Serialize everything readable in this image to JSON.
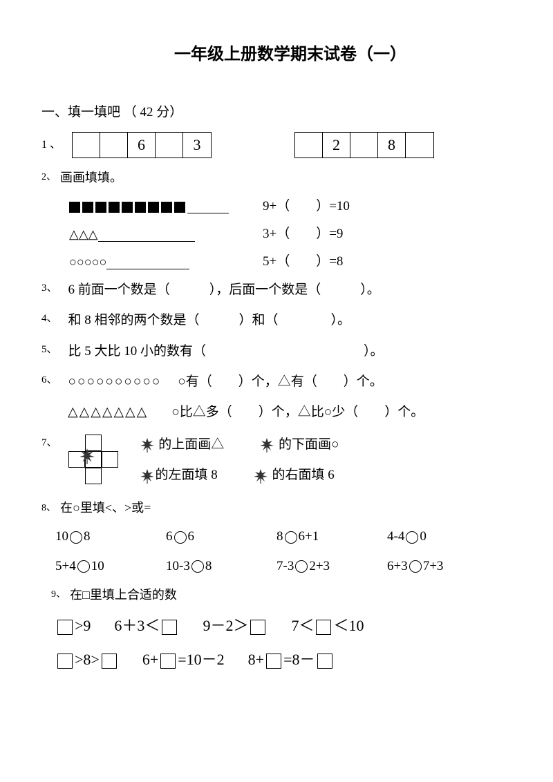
{
  "title": "一年级上册数学期末试卷（一）",
  "section1": {
    "heading": "一、填一填吧 （ 42 分）"
  },
  "q1": {
    "num": "1 、",
    "row1": [
      "",
      "",
      "6",
      "",
      "3"
    ],
    "row2": [
      "",
      "2",
      "",
      "8",
      ""
    ]
  },
  "q2": {
    "num": "2、",
    "label": "画画填填。",
    "lines": [
      {
        "shapes_count": 9,
        "shape": "square",
        "blank_w": 60,
        "eqn": "9+（　　）=10"
      },
      {
        "shapes_count": 3,
        "shape": "triangle",
        "blank_w": 140,
        "eqn": "3+（　　）=9"
      },
      {
        "shapes_count": 5,
        "shape": "circle",
        "blank_w": 120,
        "eqn": "5+（　　）=8"
      }
    ]
  },
  "q3": {
    "num": "3、",
    "text": "6 前面一个数是（　　　），后面一个数是（　　　）。"
  },
  "q4": {
    "num": "4、",
    "text": "和 8 相邻的两个数是（　　　）和（　　　　）。"
  },
  "q5": {
    "num": "5、",
    "text": "比 5 大比 10 小的数有（　　　　　　　　　　　　）。"
  },
  "q6": {
    "num": "6、",
    "line1_shapes": "○○○○○○○○○○",
    "line1_text": "○有（　　）个，△有（　　）个。",
    "line2_shapes": "△△△△△△△",
    "line2_text": "○比△多（　　）个，△比○少（　　）个。"
  },
  "q7": {
    "num": "7、",
    "r1a": "的上面画△",
    "r1b": "的下面画○",
    "r2a": "的左面填 8",
    "r2b": "的右面填 6"
  },
  "q8": {
    "num": "8、",
    "label": "在○里填<、>或=",
    "rows": [
      [
        "10○8",
        "6○6",
        "8○6+1",
        "4-4○0"
      ],
      [
        "5+4○10",
        "10-3○8",
        "7-3○2+3",
        "6+3○7+3"
      ]
    ]
  },
  "q9": {
    "num": "9、",
    "label": "在□里填上合适的数",
    "row1": [
      "□>9",
      "6＋3＜□",
      "9－2＞□",
      "7＜□＜10"
    ],
    "row2": [
      "□>8>□",
      "6+□=10－2",
      "8+□=8－□"
    ]
  }
}
